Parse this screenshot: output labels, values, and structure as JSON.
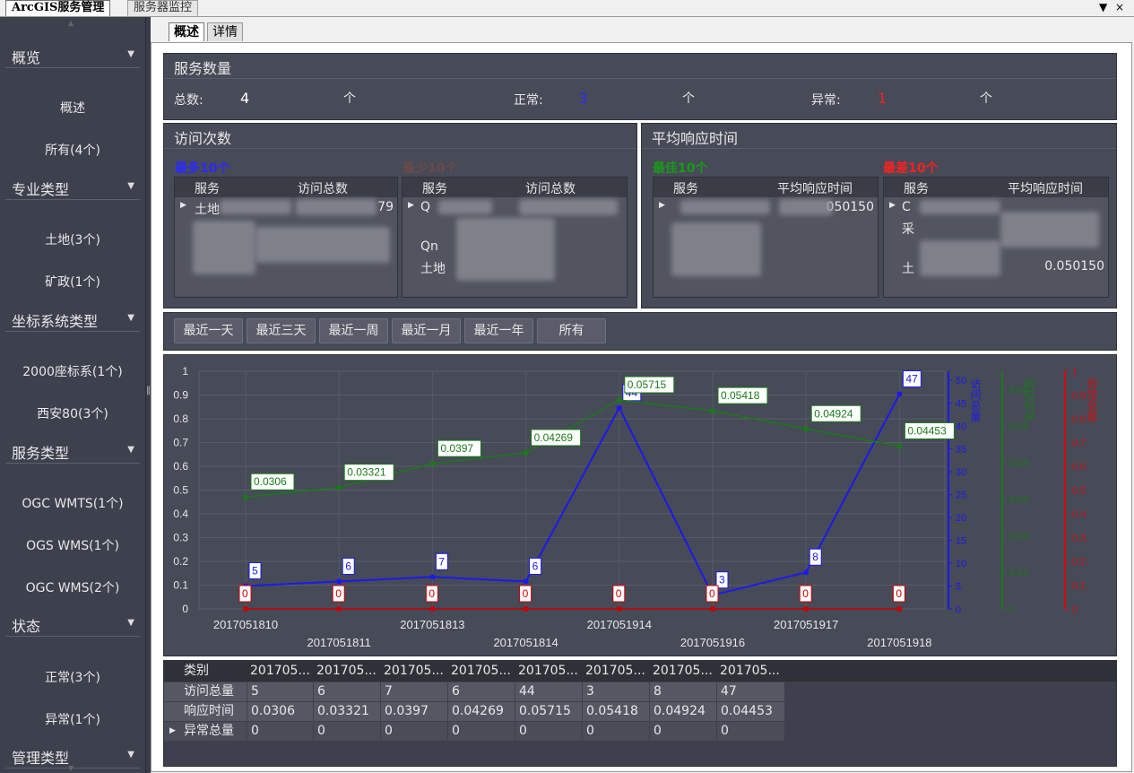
{
  "window": {
    "tabs": [
      "ArcGIS服务管理",
      "服务器监控"
    ],
    "controls": [
      "▼",
      "×"
    ]
  },
  "sidebar": {
    "groups": [
      {
        "header": "概览",
        "items": [
          "概述",
          "所有(4个)"
        ]
      },
      {
        "header": "专业类型",
        "items": [
          "土地(3个)",
          "矿政(1个)"
        ]
      },
      {
        "header": "坐标系统类型",
        "items": [
          "2000座标系(1个)",
          "西安80(3个)"
        ]
      },
      {
        "header": "服务类型",
        "items": [
          "OGC WMTS(1个)",
          "OGS WMS(1个)",
          "OGC WMS(2个)"
        ]
      },
      {
        "header": "状态",
        "items": [
          "正常(3个)",
          "异常(1个)"
        ]
      },
      {
        "header": "管理类型",
        "items": []
      }
    ]
  },
  "subtabs": [
    "概述",
    "详情"
  ],
  "service_count": {
    "title": "服务数量",
    "total_label": "总数:",
    "total_value": "4",
    "normal_label": "正常:",
    "normal_value": "3",
    "abnormal_label": "异常:",
    "abnormal_value": "1",
    "unit": "个",
    "colors": {
      "total": "#ffffff",
      "normal": "#2a2aff",
      "abnormal": "#ff2020"
    }
  },
  "visits": {
    "title": "访问次数",
    "most_label": "最多10个",
    "least_label": "最少10个",
    "col_service": "服务",
    "col_total": "访问总数",
    "most_first_service": "土地",
    "most_first_value": "79",
    "least_rows": [
      "Q",
      "Qn",
      "土地"
    ]
  },
  "response": {
    "title": "平均响应时间",
    "best_label": "最佳10个",
    "worst_label": "最差10个",
    "col_service": "服务",
    "col_avg": "平均响应时间",
    "best_first_value": "050150",
    "worst_rows": [
      "C",
      "采",
      "土"
    ],
    "worst_value": "0.050150"
  },
  "range_buttons": [
    "最近一天",
    "最近三天",
    "最近一周",
    "最近一月",
    "最近一年",
    "所有"
  ],
  "chart_data": {
    "type": "line",
    "categories": [
      "2017051810",
      "2017051811",
      "2017051813",
      "2017051814",
      "2017051914",
      "2017051916",
      "2017051917",
      "2017051918"
    ],
    "series": [
      {
        "name": "访问总量",
        "values": [
          5,
          6,
          7,
          6,
          44,
          3,
          8,
          47
        ],
        "axis": "right1",
        "color": "#1a1aee"
      },
      {
        "name": "响应时间",
        "values": [
          0.0306,
          0.03321,
          0.0397,
          0.04269,
          0.05715,
          0.05418,
          0.04924,
          0.04453
        ],
        "axis": "right2",
        "color": "#1a7a1a"
      },
      {
        "name": "异常总量",
        "values": [
          0,
          0,
          0,
          0,
          0,
          0,
          0,
          0
        ],
        "axis": "right3",
        "color": "#cc0000"
      }
    ],
    "left_axis": {
      "ylim": [
        0,
        1
      ],
      "ticks": [
        "0",
        "0.1",
        "0.2",
        "0.3",
        "0.4",
        "0.5",
        "0.6",
        "0.7",
        "0.8",
        "0.9",
        "1"
      ]
    },
    "right1_axis": {
      "label": "访问总量",
      "ylim": [
        0,
        52
      ],
      "ticks": [
        "0",
        "5",
        "10",
        "15",
        "20",
        "25",
        "30",
        "35",
        "40",
        "45",
        "50"
      ]
    },
    "right2_axis": {
      "label": "响应时间",
      "ylim": [
        0,
        0.065
      ],
      "ticks": [
        "0",
        "0.01",
        "0.02",
        "0.03",
        "0.04",
        "0.05",
        "0.06"
      ]
    },
    "right3_axis": {
      "label": "异常总量",
      "ylim": [
        0,
        1
      ],
      "ticks": [
        "0",
        "0.1",
        "0.2",
        "0.3",
        "0.4",
        "0.5",
        "0.6",
        "0.7",
        "0.8",
        "0.9",
        "1"
      ]
    },
    "grid": true
  },
  "data_table": {
    "columns": [
      "类别",
      "201705...",
      "201705...",
      "201705...",
      "201705...",
      "201705...",
      "201705...",
      "201705...",
      "201705..."
    ],
    "rows": [
      {
        "label": "访问总量",
        "values": [
          "5",
          "6",
          "7",
          "6",
          "44",
          "3",
          "8",
          "47"
        ]
      },
      {
        "label": "响应时间",
        "values": [
          "0.0306",
          "0.03321",
          "0.0397",
          "0.04269",
          "0.05715",
          "0.05418",
          "0.04924",
          "0.04453"
        ]
      },
      {
        "label": "异常总量",
        "values": [
          "0",
          "0",
          "0",
          "0",
          "0",
          "0",
          "0",
          "0"
        ]
      }
    ]
  }
}
